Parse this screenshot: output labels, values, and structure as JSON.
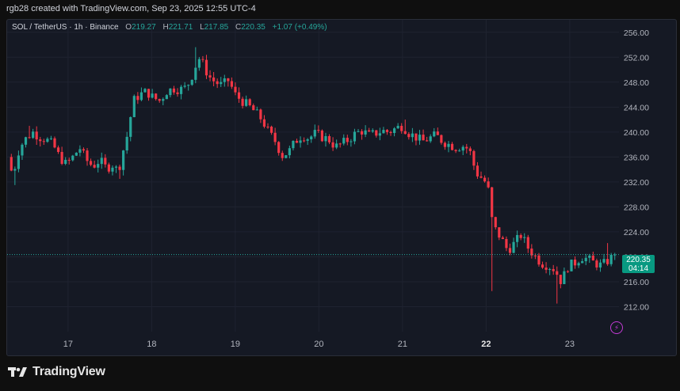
{
  "header": {
    "attribution": "rgb28 created with TradingView.com, Sep 23, 2025 12:55 UTC-4"
  },
  "legend": {
    "symbol": "SOL / TetherUS · 1h · Binance",
    "open_label": "O",
    "open": "219.27",
    "high_label": "H",
    "high": "221.71",
    "low_label": "L",
    "low": "217.85",
    "close_label": "C",
    "close": "220.35",
    "change": "+1.07 (+0.49%)"
  },
  "price_badge": {
    "price": "220.35",
    "countdown": "04:14"
  },
  "colors": {
    "up": "#26a69a",
    "down": "#f23645",
    "background": "#151924",
    "badge": "#089981"
  },
  "footer": {
    "brand": "TradingView",
    "logo_icon": "tradingview-logo-icon"
  },
  "chart_data": {
    "type": "candlestick",
    "interval": "1h",
    "ylim": [
      208,
      258
    ],
    "y_ticks": [
      "256.00",
      "252.00",
      "248.00",
      "244.00",
      "240.00",
      "236.00",
      "232.00",
      "228.00",
      "224.00",
      "220.00",
      "216.00",
      "212.00"
    ],
    "x_ticks": [
      {
        "label": "17",
        "pos": 3.5
      },
      {
        "label": "18",
        "pos": 8.5
      },
      {
        "label": "19",
        "pos": 13.5
      },
      {
        "label": "20",
        "pos": 18.5
      },
      {
        "label": "21",
        "pos": 23.5
      },
      {
        "label": "22",
        "pos": 28.5,
        "bold": true
      },
      {
        "label": "23",
        "pos": 33.5
      }
    ],
    "x_span": [
      0,
      36.3
    ],
    "last_price": 220.35,
    "anchors": [
      [
        0.0,
        236.0
      ],
      [
        0.3,
        233.0
      ],
      [
        0.7,
        237.5
      ],
      [
        1.1,
        239.0
      ],
      [
        1.5,
        240.0
      ],
      [
        1.9,
        239.2
      ],
      [
        2.3,
        238.8
      ],
      [
        2.7,
        238.0
      ],
      [
        3.1,
        236.0
      ],
      [
        3.5,
        234.8
      ],
      [
        3.9,
        236.0
      ],
      [
        4.3,
        237.5
      ],
      [
        4.7,
        235.5
      ],
      [
        5.1,
        234.5
      ],
      [
        5.5,
        235.5
      ],
      [
        5.9,
        234.2
      ],
      [
        6.3,
        234.8
      ],
      [
        6.6,
        233.6
      ],
      [
        6.9,
        237.0
      ],
      [
        7.2,
        240.0
      ],
      [
        7.5,
        245.0
      ],
      [
        7.9,
        246.0
      ],
      [
        8.3,
        246.5
      ],
      [
        8.7,
        245.5
      ],
      [
        9.1,
        245.0
      ],
      [
        9.5,
        246.5
      ],
      [
        9.9,
        247.0
      ],
      [
        10.3,
        246.8
      ],
      [
        10.7,
        247.2
      ],
      [
        11.1,
        249.5
      ],
      [
        11.4,
        252.0
      ],
      [
        11.7,
        250.8
      ],
      [
        12.0,
        249.0
      ],
      [
        12.4,
        248.0
      ],
      [
        12.8,
        247.5
      ],
      [
        13.2,
        248.3
      ],
      [
        13.6,
        246.0
      ],
      [
        14.0,
        245.0
      ],
      [
        14.4,
        244.2
      ],
      [
        14.8,
        243.2
      ],
      [
        15.2,
        242.0
      ],
      [
        15.6,
        240.0
      ],
      [
        16.0,
        238.5
      ],
      [
        16.4,
        236.2
      ],
      [
        16.8,
        236.8
      ],
      [
        17.2,
        238.5
      ],
      [
        17.6,
        239.5
      ],
      [
        18.0,
        239.0
      ],
      [
        18.4,
        239.8
      ],
      [
        18.8,
        239.2
      ],
      [
        19.2,
        238.8
      ],
      [
        19.6,
        237.6
      ],
      [
        20.0,
        238.2
      ],
      [
        20.4,
        238.8
      ],
      [
        20.8,
        239.8
      ],
      [
        21.2,
        240.2
      ],
      [
        21.6,
        239.5
      ],
      [
        22.0,
        239.8
      ],
      [
        22.4,
        240.2
      ],
      [
        22.8,
        240.0
      ],
      [
        23.2,
        240.6
      ],
      [
        23.6,
        241.0
      ],
      [
        24.0,
        239.8
      ],
      [
        24.4,
        239.2
      ],
      [
        24.8,
        238.5
      ],
      [
        25.2,
        239.0
      ],
      [
        25.6,
        239.5
      ],
      [
        26.0,
        238.5
      ],
      [
        26.4,
        238.0
      ],
      [
        26.8,
        237.5
      ],
      [
        27.2,
        237.8
      ],
      [
        27.6,
        237.2
      ],
      [
        28.0,
        233.5
      ],
      [
        28.4,
        232.5
      ],
      [
        28.7,
        231.5
      ],
      [
        29.0,
        225.0
      ],
      [
        29.3,
        223.8
      ],
      [
        29.6,
        222.5
      ],
      [
        29.9,
        221.0
      ],
      [
        30.3,
        222.2
      ],
      [
        30.7,
        223.5
      ],
      [
        31.1,
        221.5
      ],
      [
        31.5,
        220.2
      ],
      [
        31.9,
        219.0
      ],
      [
        32.3,
        218.6
      ],
      [
        32.7,
        218.0
      ],
      [
        33.1,
        216.0
      ],
      [
        33.5,
        218.5
      ],
      [
        33.9,
        219.0
      ],
      [
        34.3,
        220.0
      ],
      [
        34.7,
        219.6
      ],
      [
        35.1,
        219.0
      ],
      [
        35.5,
        218.6
      ],
      [
        35.9,
        219.4
      ],
      [
        36.3,
        220.35
      ]
    ],
    "spikes": [
      {
        "x": 0.5,
        "low": 231.5
      },
      {
        "x": 1.3,
        "high": 241.0
      },
      {
        "x": 6.7,
        "low": 232.5
      },
      {
        "x": 11.2,
        "high": 253.6
      },
      {
        "x": 16.5,
        "low": 235.4
      },
      {
        "x": 23.8,
        "high": 242.0
      },
      {
        "x": 28.9,
        "low": 214.5
      },
      {
        "x": 32.8,
        "low": 212.5
      },
      {
        "x": 35.8,
        "high": 222.2
      }
    ]
  }
}
